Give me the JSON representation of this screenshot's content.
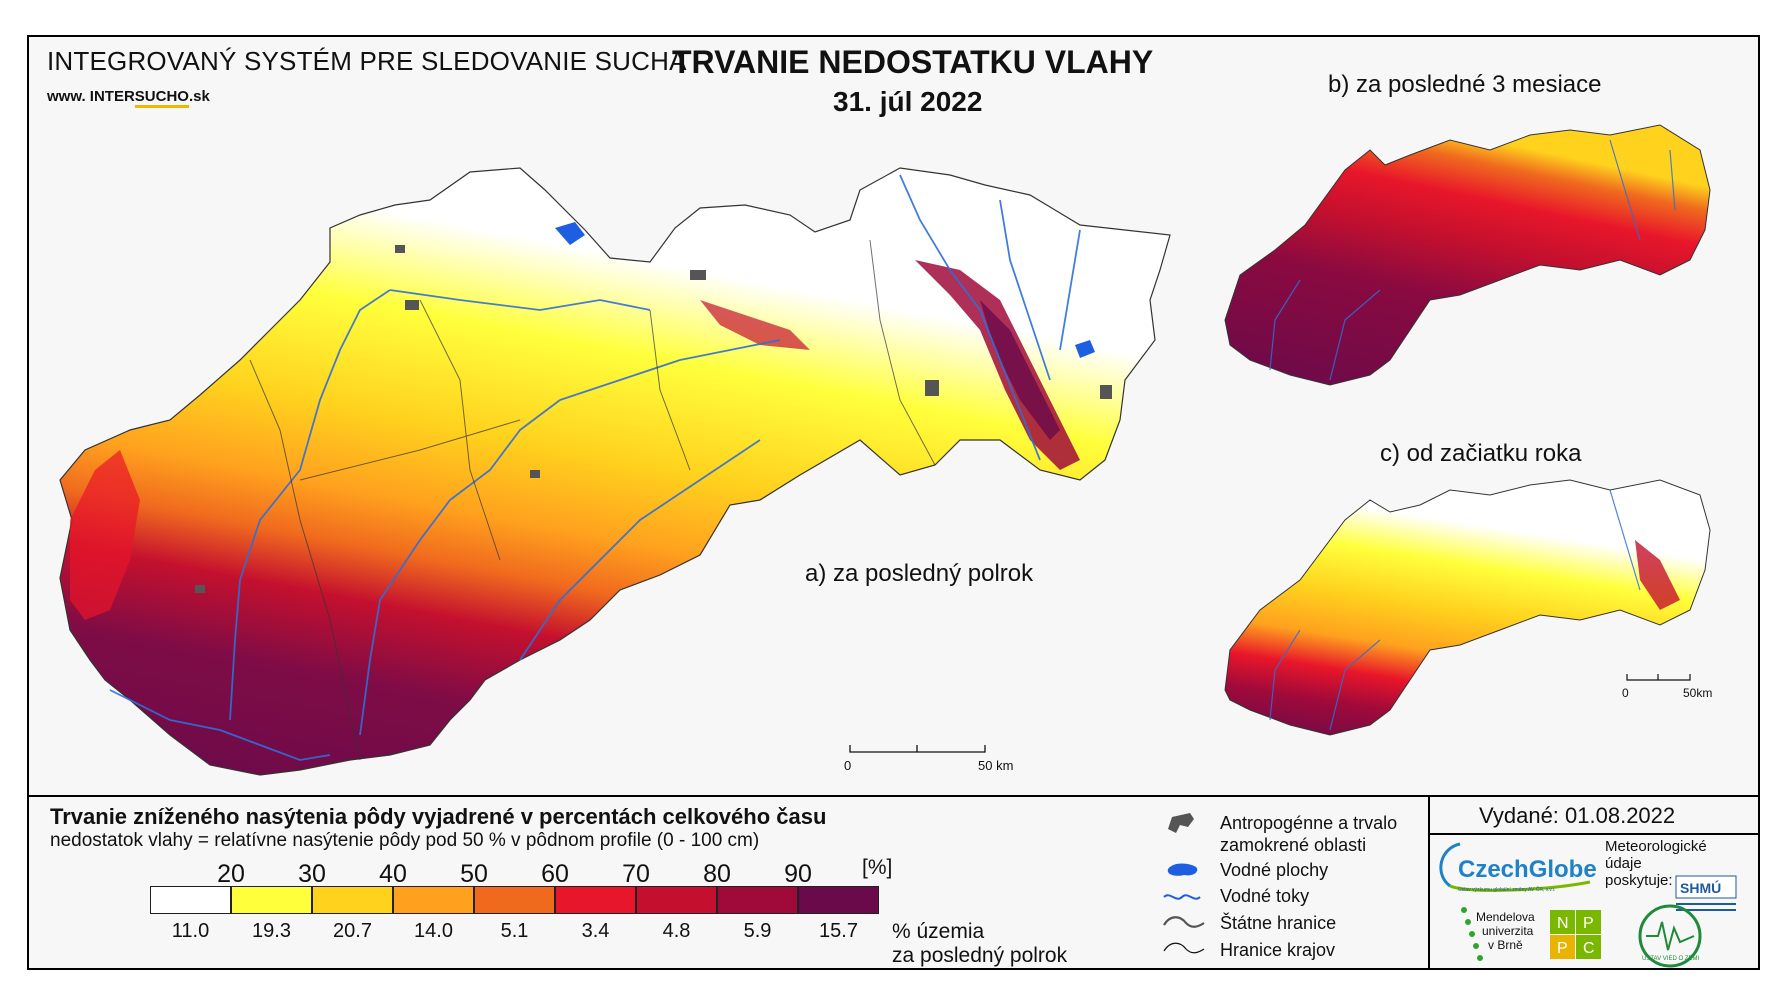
{
  "header": {
    "system_title": "INTEGROVANÝ SYSTÉM PRE SLEDOVANIE SUCHA",
    "website_prefix": "www. INTER",
    "website_mid": "SUCHO",
    "website_suffix": ".sk",
    "main_title": "TRVANIE NEDOSTATKU VLAHY",
    "date": "31. júl 2022"
  },
  "panels": {
    "a_label": "a) za posledný polrok",
    "b_label": "b) za posledné 3 mesiace",
    "c_label": "c) od začiatku roka"
  },
  "scalebar_main": {
    "start": "0",
    "end": "50 km"
  },
  "scalebar_small": {
    "start": "0",
    "end": "50km"
  },
  "legend": {
    "title": "Trvanie zníženého nasýtenia pôdy vyjadrené v percentách celkového času",
    "subtitle": "nedostatok vlahy = relatívne nasýtenie pôdy pod 50 % v pôdnom profile (0 - 100 cm)",
    "unit": "[%]",
    "ticks": [
      "20",
      "30",
      "40",
      "50",
      "60",
      "70",
      "80",
      "90"
    ],
    "colors": [
      "#ffffff",
      "#ffff3c",
      "#ffd21e",
      "#ffa11e",
      "#f06a1e",
      "#e8162a",
      "#c4102e",
      "#a00a3a",
      "#6a0a4a"
    ],
    "percentages": [
      "11.0",
      "19.3",
      "20.7",
      "14.0",
      "5.1",
      "3.4",
      "4.8",
      "5.9",
      "15.7"
    ],
    "pct_caption_1": "% územia",
    "pct_caption_2": "za posledný polrok"
  },
  "key": {
    "anthropogenic_1": "Antropogénne a trvalo",
    "anthropogenic_2": "zamokrené oblasti",
    "water_bodies": "Vodné plochy",
    "rivers": "Vodné toky",
    "state_border": "Štátne hranice",
    "region_border": "Hranice krajov"
  },
  "issued": "Vydané: 01.08.2022",
  "providers": {
    "czechglobe": "CzechGlobe",
    "czechglobe_sub": "Ústav výzkumu globální změny AV ČR, v.v.i.",
    "meteo_1": "Meteorologické",
    "meteo_2": "údaje",
    "meteo_3": "poskytuje:",
    "shmu": "SHMÚ",
    "mendel_1": "Mendelova",
    "mendel_2": "univerzita",
    "mendel_3": "v Brně",
    "nppc": [
      "N",
      "P",
      "P",
      "C"
    ],
    "uvz": "ÚSTAV VIED O ZEMI"
  }
}
